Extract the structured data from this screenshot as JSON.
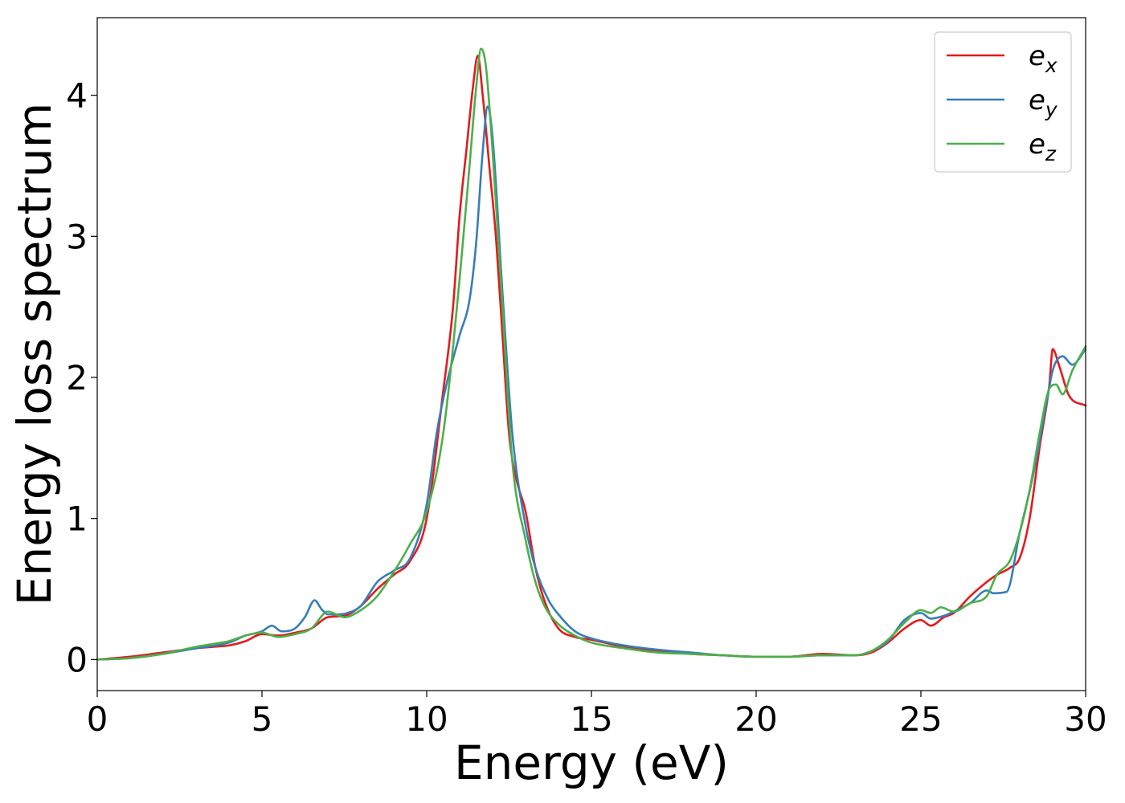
{
  "chart_data": {
    "type": "line",
    "title": "",
    "xlabel": "Energy (eV)",
    "ylabel": "Energy loss spectrum",
    "xlim": [
      0,
      30
    ],
    "ylim": [
      -0.22,
      4.55
    ],
    "xticks": [
      0,
      5,
      10,
      15,
      20,
      25,
      30
    ],
    "yticks": [
      0,
      1,
      2,
      3,
      4
    ],
    "grid": false,
    "legend_position": "top-right",
    "series": [
      {
        "name": "e_x",
        "legend_base": "e",
        "legend_sub": "x",
        "color": "#e41a1c",
        "x": [
          0,
          1,
          2,
          3,
          3.5,
          4,
          4.5,
          5,
          5.5,
          6,
          6.5,
          7,
          7.5,
          8,
          8.5,
          9,
          9.5,
          10,
          10.5,
          10.8,
          11,
          11.2,
          11.4,
          11.55,
          11.7,
          11.9,
          12.1,
          12.3,
          12.5,
          12.7,
          13,
          13.3,
          13.6,
          14,
          14.5,
          15,
          16,
          17,
          18,
          19,
          20,
          21,
          22,
          23,
          23.5,
          24,
          24.5,
          25,
          25.3,
          25.7,
          26,
          26.5,
          27,
          27.3,
          27.7,
          28,
          28.3,
          28.6,
          28.9,
          29,
          29.2,
          29.5,
          30
        ],
        "y": [
          0,
          0.02,
          0.05,
          0.08,
          0.09,
          0.1,
          0.13,
          0.18,
          0.17,
          0.19,
          0.22,
          0.3,
          0.31,
          0.38,
          0.5,
          0.6,
          0.7,
          1.0,
          1.9,
          2.5,
          3.15,
          3.6,
          4.05,
          4.28,
          4.0,
          3.5,
          3.0,
          2.3,
          1.6,
          1.3,
          1.05,
          0.65,
          0.4,
          0.22,
          0.16,
          0.14,
          0.09,
          0.06,
          0.04,
          0.03,
          0.02,
          0.02,
          0.04,
          0.03,
          0.05,
          0.12,
          0.22,
          0.28,
          0.24,
          0.3,
          0.33,
          0.45,
          0.55,
          0.6,
          0.65,
          0.72,
          1.0,
          1.5,
          1.95,
          2.2,
          2.08,
          1.87,
          1.8
        ]
      },
      {
        "name": "e_y",
        "legend_base": "e",
        "legend_sub": "y",
        "color": "#377eb8",
        "x": [
          0,
          1,
          2,
          3,
          4,
          4.5,
          5,
          5.3,
          5.6,
          6,
          6.3,
          6.6,
          6.8,
          7,
          7.3,
          7.6,
          8,
          8.5,
          9,
          9.5,
          10,
          10.3,
          10.6,
          11,
          11.3,
          11.5,
          11.7,
          11.85,
          12,
          12.3,
          12.6,
          13,
          13.3,
          13.7,
          14,
          14.5,
          15,
          16,
          17,
          18,
          19,
          20,
          21,
          22,
          23,
          23.5,
          24,
          24.5,
          25,
          25.3,
          25.7,
          26,
          26.5,
          27,
          27.2,
          27.6,
          28,
          28.4,
          28.8,
          29,
          29.3,
          29.6,
          30
        ],
        "y": [
          0,
          0.01,
          0.04,
          0.08,
          0.12,
          0.17,
          0.2,
          0.24,
          0.2,
          0.22,
          0.3,
          0.42,
          0.36,
          0.32,
          0.32,
          0.33,
          0.38,
          0.55,
          0.63,
          0.72,
          1.1,
          1.6,
          1.95,
          2.3,
          2.55,
          2.95,
          3.6,
          3.92,
          3.7,
          2.6,
          1.6,
          0.95,
          0.65,
          0.42,
          0.32,
          0.2,
          0.15,
          0.1,
          0.07,
          0.05,
          0.03,
          0.02,
          0.02,
          0.03,
          0.03,
          0.06,
          0.13,
          0.28,
          0.33,
          0.29,
          0.31,
          0.34,
          0.4,
          0.49,
          0.47,
          0.48,
          0.9,
          1.3,
          1.8,
          2.05,
          2.15,
          2.09,
          2.2
        ]
      },
      {
        "name": "e_z",
        "legend_base": "e",
        "legend_sub": "z",
        "color": "#4daf4a",
        "x": [
          0,
          1,
          2,
          3,
          3.5,
          4,
          4.5,
          5,
          5.5,
          6,
          6.5,
          7,
          7.5,
          8,
          8.5,
          9,
          9.5,
          10,
          10.5,
          11,
          11.3,
          11.5,
          11.65,
          11.8,
          12,
          12.3,
          12.6,
          13,
          13.3,
          13.6,
          14,
          14.5,
          15,
          16,
          17,
          18,
          19,
          20,
          21,
          22,
          23,
          23.5,
          24,
          24.5,
          25,
          25.3,
          25.6,
          26,
          26.5,
          27,
          27.3,
          27.7,
          28,
          28.3,
          28.6,
          28.9,
          29.1,
          29.3,
          29.6,
          30
        ],
        "y": [
          0,
          0.01,
          0.04,
          0.09,
          0.11,
          0.13,
          0.17,
          0.19,
          0.16,
          0.18,
          0.22,
          0.34,
          0.3,
          0.35,
          0.45,
          0.62,
          0.82,
          1.05,
          1.6,
          2.7,
          3.5,
          4.05,
          4.33,
          4.2,
          3.6,
          2.5,
          1.4,
          0.85,
          0.55,
          0.37,
          0.25,
          0.17,
          0.12,
          0.08,
          0.05,
          0.04,
          0.03,
          0.02,
          0.02,
          0.03,
          0.03,
          0.06,
          0.14,
          0.26,
          0.35,
          0.33,
          0.37,
          0.34,
          0.4,
          0.45,
          0.6,
          0.7,
          0.9,
          1.2,
          1.6,
          1.92,
          1.95,
          1.88,
          2.05,
          2.22
        ]
      }
    ]
  }
}
